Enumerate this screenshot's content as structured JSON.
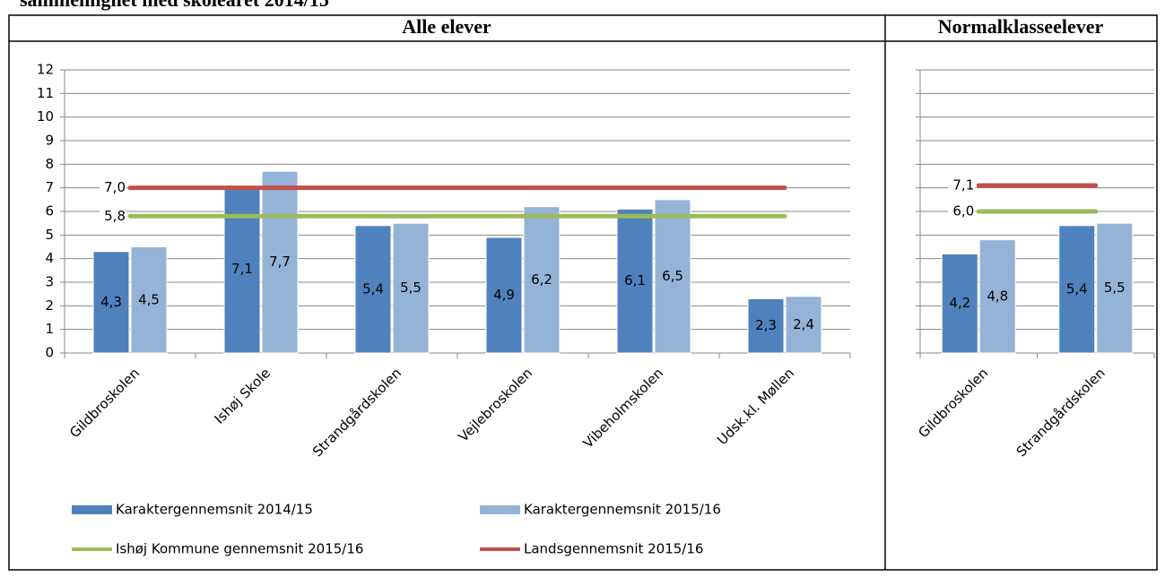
{
  "header": {
    "text": "sammenlignet med skoleåret 2014/15"
  },
  "chart_data": [
    {
      "type": "bar",
      "title": "Alle elever",
      "categories": [
        "Gildbroskolen",
        "Ishøj Skole",
        "Strandgårdskolen",
        "Vejlebroskolen",
        "Vibeholmskolen",
        "Udsk.kl. Møllen"
      ],
      "series": [
        {
          "name": "Karaktergennemsnit 2014/15",
          "color": "#4f81bd",
          "values": [
            4.3,
            7.1,
            5.4,
            4.9,
            6.1,
            2.3
          ],
          "value_labels": [
            "4,3",
            "7,1",
            "5,4",
            "4,9",
            "6,1",
            "2,3"
          ]
        },
        {
          "name": "Karaktergennemsnit 2015/16",
          "color": "#95b3d7",
          "values": [
            4.5,
            7.7,
            5.5,
            6.2,
            6.5,
            2.4
          ],
          "value_labels": [
            "4,5",
            "7,7",
            "5,5",
            "6,2",
            "6,5",
            "2,4"
          ]
        }
      ],
      "lines": [
        {
          "name": "Ishøj Kommune gennemsnit 2015/16",
          "color": "#9bbb59",
          "value": 5.8,
          "value_label": "5,8"
        },
        {
          "name": "Landsgennemsnit 2015/16",
          "color": "#c0504d",
          "value": 7.0,
          "value_label": "7,0"
        }
      ],
      "ylim": [
        0,
        12
      ],
      "yticks": [
        0,
        1,
        2,
        3,
        4,
        5,
        6,
        7,
        8,
        9,
        10,
        11,
        12
      ],
      "grid": true,
      "show_ytick_labels": true,
      "legend": "bottom"
    },
    {
      "type": "bar",
      "title": "Normalklasseelever",
      "categories": [
        "Gildbroskolen",
        "Strandgårdskolen"
      ],
      "series": [
        {
          "color": "#4f81bd",
          "values": [
            4.2,
            5.4
          ],
          "value_labels": [
            "4,2",
            "5,4"
          ]
        },
        {
          "color": "#95b3d7",
          "values": [
            4.8,
            5.5
          ],
          "value_labels": [
            "4,8",
            "5,5"
          ]
        }
      ],
      "lines": [
        {
          "color": "#9bbb59",
          "value": 6.0,
          "value_label": "6,0"
        },
        {
          "color": "#c0504d",
          "value": 7.1,
          "value_label": "7,1"
        }
      ],
      "ylim": [
        0,
        12
      ],
      "yticks": [
        0,
        1,
        2,
        3,
        4,
        5,
        6,
        7,
        8,
        9,
        10,
        11,
        12
      ],
      "grid": true,
      "show_ytick_labels": false
    }
  ]
}
